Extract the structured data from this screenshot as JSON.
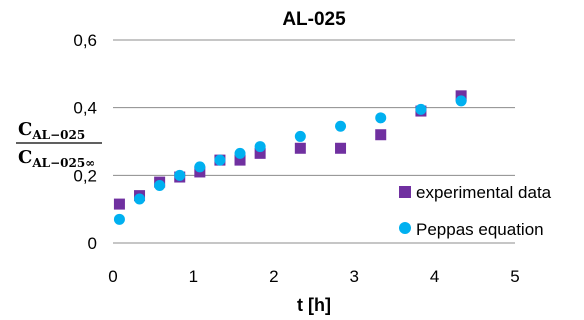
{
  "chart_data": {
    "type": "scatter",
    "title": "AL-025",
    "xlabel": "t [h]",
    "ylabel": {
      "numerator_main": "C",
      "numerator_sub": "AL−025",
      "denominator_main": "C",
      "denominator_sub": "AL−025∞"
    },
    "xlim": [
      0,
      5
    ],
    "ylim": [
      0,
      0.6
    ],
    "x_ticks": [
      "0",
      "1",
      "2",
      "3",
      "4",
      "5"
    ],
    "y_ticks": [
      "0",
      "0,2",
      "0,4",
      "0,6"
    ],
    "grid": "horizontal",
    "legend_position": "right",
    "series": [
      {
        "name": "experimental data",
        "marker": "square",
        "color": "#7030a0",
        "x": [
          0.08,
          0.33,
          0.58,
          0.83,
          1.08,
          1.33,
          1.58,
          1.83,
          2.33,
          2.83,
          3.33,
          3.83,
          4.33
        ],
        "y": [
          0.115,
          0.14,
          0.18,
          0.195,
          0.21,
          0.245,
          0.245,
          0.265,
          0.28,
          0.28,
          0.32,
          0.39,
          0.435
        ]
      },
      {
        "name": "Peppas equation",
        "marker": "circle",
        "color": "#00b0f0",
        "x": [
          0.08,
          0.33,
          0.58,
          0.83,
          1.08,
          1.33,
          1.58,
          1.83,
          2.33,
          2.83,
          3.33,
          3.83,
          4.33
        ],
        "y": [
          0.07,
          0.13,
          0.17,
          0.2,
          0.225,
          0.245,
          0.265,
          0.285,
          0.315,
          0.345,
          0.37,
          0.395,
          0.42
        ]
      }
    ]
  }
}
